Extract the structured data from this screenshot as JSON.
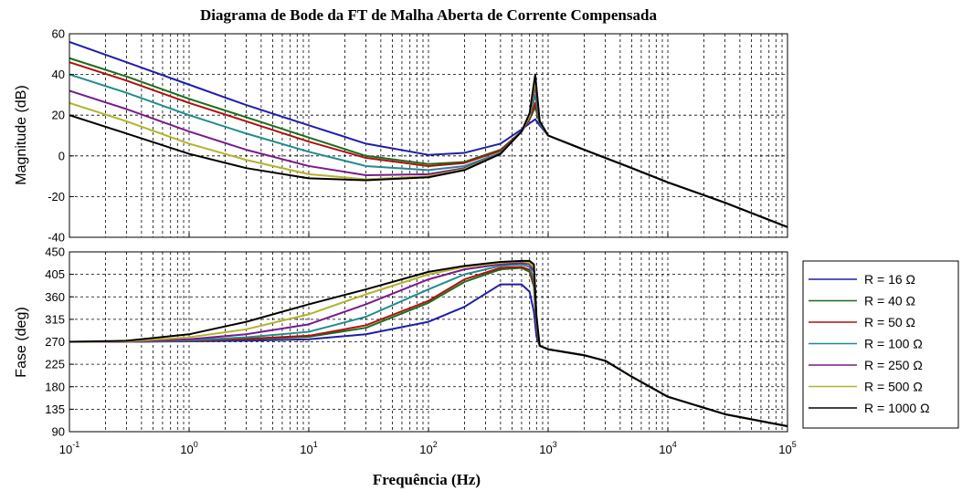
{
  "chart_data": [
    {
      "type": "line",
      "title": "Diagrama de Bode da FT de Malha Aberta de Corrente Compensada",
      "xlabel": "",
      "ylabel": "Magnitude (dB)",
      "xscale": "log",
      "xlim": [
        0.1,
        100000
      ],
      "ylim": [
        -40,
        60
      ],
      "yticks": [
        -40,
        -20,
        0,
        20,
        40,
        60
      ],
      "grid": true,
      "x": [
        0.1,
        0.3,
        1,
        3,
        10,
        30,
        100,
        200,
        400,
        600,
        700,
        780,
        850,
        1000,
        2000,
        5000,
        10000,
        30000,
        100000
      ],
      "series": [
        {
          "name": "R = 16 Ω",
          "color": "#1f1fa8",
          "values": [
            56,
            46,
            35,
            25,
            15,
            6,
            0.5,
            1.5,
            6,
            13,
            16,
            18,
            15,
            10,
            3,
            -6,
            -13,
            -23,
            -35
          ]
        },
        {
          "name": "R = 40 Ω",
          "color": "#1a6e1a",
          "values": [
            48,
            39,
            28,
            19,
            9,
            0,
            -4,
            -3,
            3,
            12,
            18,
            24,
            16,
            10,
            3,
            -6,
            -13,
            -23,
            -35
          ]
        },
        {
          "name": "R = 50 Ω",
          "color": "#b01010",
          "values": [
            46,
            37,
            26,
            17,
            7,
            -1,
            -5,
            -3.5,
            2.5,
            12,
            18,
            26,
            16,
            10,
            3,
            -6,
            -13,
            -23,
            -35
          ]
        },
        {
          "name": "R = 100 Ω",
          "color": "#1f8c8c",
          "values": [
            40,
            31,
            20,
            11,
            2,
            -5,
            -7,
            -5,
            1.5,
            12,
            19,
            30,
            16,
            10,
            3,
            -6,
            -13,
            -23,
            -35
          ]
        },
        {
          "name": "R = 250 Ω",
          "color": "#7a1a8c",
          "values": [
            32,
            23,
            12,
            3,
            -5,
            -9.5,
            -9,
            -6,
            1,
            12,
            20,
            34,
            17,
            10,
            3,
            -6,
            -13,
            -23,
            -35
          ]
        },
        {
          "name": "R = 500 Ω",
          "color": "#b3b32a",
          "values": [
            26,
            17,
            6,
            -2,
            -9,
            -11.5,
            -10,
            -6.5,
            1,
            12,
            20,
            37,
            17,
            10,
            3,
            -6,
            -13,
            -23,
            -35
          ]
        },
        {
          "name": "R = 1000 Ω",
          "color": "#000000",
          "values": [
            20,
            11,
            1,
            -6,
            -11,
            -12,
            -10.5,
            -7,
            1,
            12,
            21,
            40,
            17,
            10,
            3,
            -6,
            -13,
            -23,
            -35
          ]
        }
      ]
    },
    {
      "type": "line",
      "title": "",
      "xlabel": "Frequência  (Hz)",
      "ylabel": "Fase (deg)",
      "xscale": "log",
      "xlim": [
        0.1,
        100000
      ],
      "ylim": [
        90,
        450
      ],
      "yticks": [
        90,
        135,
        180,
        225,
        270,
        315,
        360,
        405,
        450
      ],
      "xtick_labels": [
        "10",
        "10",
        "10",
        "10",
        "10",
        "10",
        "10"
      ],
      "xtick_exponents": [
        "-1",
        "0",
        "1",
        "2",
        "3",
        "4",
        "5"
      ],
      "grid": true,
      "legend_placement": "outside-right",
      "x": [
        0.1,
        0.3,
        1,
        3,
        10,
        30,
        100,
        200,
        400,
        600,
        700,
        760,
        800,
        850,
        1000,
        2000,
        3000,
        5000,
        10000,
        30000,
        100000
      ],
      "series": [
        {
          "name": "R = 16 Ω",
          "color": "#1f1fa8",
          "values": [
            270,
            270,
            271,
            272,
            275,
            285,
            310,
            340,
            385,
            385,
            370,
            330,
            280,
            262,
            255,
            243,
            232,
            200,
            160,
            125,
            101
          ]
        },
        {
          "name": "R = 40 Ω",
          "color": "#1a6e1a",
          "values": [
            270,
            270,
            272,
            275,
            280,
            298,
            348,
            390,
            415,
            418,
            410,
            380,
            300,
            262,
            255,
            243,
            232,
            200,
            160,
            125,
            101
          ]
        },
        {
          "name": "R = 50 Ω",
          "color": "#b01010",
          "values": [
            270,
            270,
            272,
            276,
            282,
            303,
            352,
            395,
            418,
            420,
            414,
            385,
            300,
            262,
            255,
            243,
            232,
            200,
            160,
            125,
            101
          ]
        },
        {
          "name": "R = 100 Ω",
          "color": "#1f8c8c",
          "values": [
            270,
            270,
            273,
            279,
            290,
            320,
            375,
            405,
            422,
            425,
            420,
            395,
            305,
            262,
            255,
            243,
            232,
            200,
            160,
            125,
            101
          ]
        },
        {
          "name": "R = 250 Ω",
          "color": "#7a1a8c",
          "values": [
            270,
            270,
            275,
            285,
            305,
            345,
            395,
            415,
            425,
            428,
            425,
            410,
            310,
            262,
            255,
            243,
            232,
            200,
            160,
            125,
            101
          ]
        },
        {
          "name": "R = 500 Ω",
          "color": "#b3b32a",
          "values": [
            270,
            271,
            279,
            295,
            325,
            365,
            405,
            420,
            428,
            431,
            428,
            418,
            315,
            262,
            255,
            243,
            232,
            200,
            160,
            125,
            101
          ]
        },
        {
          "name": "R = 1000 Ω",
          "color": "#000000",
          "values": [
            270,
            272,
            285,
            310,
            345,
            375,
            410,
            422,
            430,
            432,
            432,
            425,
            320,
            262,
            255,
            243,
            232,
            200,
            160,
            125,
            101
          ]
        }
      ]
    }
  ]
}
